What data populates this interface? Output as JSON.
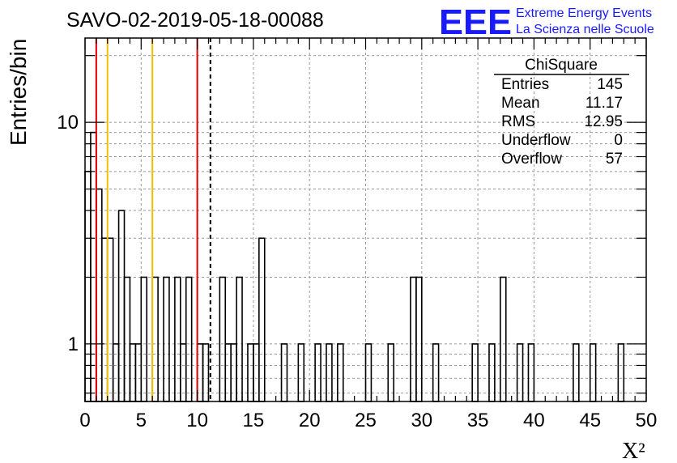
{
  "chart_data": {
    "type": "bar",
    "title": "SAVO-02-2019-05-18-00088",
    "xlabel": "X²",
    "ylabel": "Entries/bin",
    "xlim": [
      0,
      50
    ],
    "ylim": [
      0.55,
      24
    ],
    "log_y": true,
    "grid": true,
    "bin_width": 0.5,
    "x_ticks": [
      0,
      5,
      10,
      15,
      20,
      25,
      30,
      35,
      40,
      45,
      50
    ],
    "y_ticks": [
      1,
      10
    ],
    "bins": [
      {
        "x": 0.0,
        "value": 6
      },
      {
        "x": 0.5,
        "value": 9
      },
      {
        "x": 1.0,
        "value": 5
      },
      {
        "x": 1.5,
        "value": 3
      },
      {
        "x": 2.0,
        "value": 3
      },
      {
        "x": 2.5,
        "value": 1
      },
      {
        "x": 3.0,
        "value": 4
      },
      {
        "x": 3.5,
        "value": 2
      },
      {
        "x": 4.0,
        "value": 1
      },
      {
        "x": 4.5,
        "value": 1
      },
      {
        "x": 5.0,
        "value": 2
      },
      {
        "x": 5.5,
        "value": 0
      },
      {
        "x": 6.0,
        "value": 2
      },
      {
        "x": 6.5,
        "value": 0
      },
      {
        "x": 7.0,
        "value": 2
      },
      {
        "x": 7.5,
        "value": 0
      },
      {
        "x": 8.0,
        "value": 2
      },
      {
        "x": 8.5,
        "value": 1
      },
      {
        "x": 9.0,
        "value": 2
      },
      {
        "x": 9.5,
        "value": 0
      },
      {
        "x": 10.0,
        "value": 1
      },
      {
        "x": 10.5,
        "value": 1
      },
      {
        "x": 11.0,
        "value": 0
      },
      {
        "x": 11.5,
        "value": 0
      },
      {
        "x": 12.0,
        "value": 2
      },
      {
        "x": 12.5,
        "value": 1
      },
      {
        "x": 13.0,
        "value": 1
      },
      {
        "x": 13.5,
        "value": 2
      },
      {
        "x": 14.0,
        "value": 0
      },
      {
        "x": 14.5,
        "value": 1
      },
      {
        "x": 15.0,
        "value": 1
      },
      {
        "x": 15.5,
        "value": 3
      },
      {
        "x": 17.5,
        "value": 1
      },
      {
        "x": 19.0,
        "value": 1
      },
      {
        "x": 20.5,
        "value": 1
      },
      {
        "x": 21.5,
        "value": 1
      },
      {
        "x": 22.5,
        "value": 1
      },
      {
        "x": 25.0,
        "value": 1
      },
      {
        "x": 27.0,
        "value": 1
      },
      {
        "x": 29.0,
        "value": 2
      },
      {
        "x": 29.5,
        "value": 2
      },
      {
        "x": 31.0,
        "value": 1
      },
      {
        "x": 34.5,
        "value": 1
      },
      {
        "x": 36.0,
        "value": 1
      },
      {
        "x": 37.0,
        "value": 2
      },
      {
        "x": 38.5,
        "value": 1
      },
      {
        "x": 39.5,
        "value": 1
      },
      {
        "x": 43.5,
        "value": 1
      },
      {
        "x": 45.0,
        "value": 1
      },
      {
        "x": 47.5,
        "value": 1
      }
    ],
    "vertical_lines": [
      {
        "x": 1.0,
        "color": "#dd0000",
        "style": "solid"
      },
      {
        "x": 2.0,
        "color": "#f0c000",
        "style": "solid"
      },
      {
        "x": 6.0,
        "color": "#f0c000",
        "style": "solid"
      },
      {
        "x": 10.0,
        "color": "#dd0000",
        "style": "solid"
      },
      {
        "x": 11.17,
        "color": "#000000",
        "style": "dashed"
      }
    ],
    "stats_box": {
      "title": "ChiSquare",
      "rows": [
        {
          "label": "Entries",
          "value": "145"
        },
        {
          "label": "Mean",
          "value": "11.17"
        },
        {
          "label": "RMS",
          "value": "12.95"
        },
        {
          "label": "Underflow",
          "value": "0"
        },
        {
          "label": "Overflow",
          "value": "57"
        }
      ]
    }
  },
  "logo": {
    "letters": "EEE",
    "line1": "Extreme Energy Events",
    "line2": "La Scienza nelle Scuole",
    "color": "#1a1aff"
  }
}
